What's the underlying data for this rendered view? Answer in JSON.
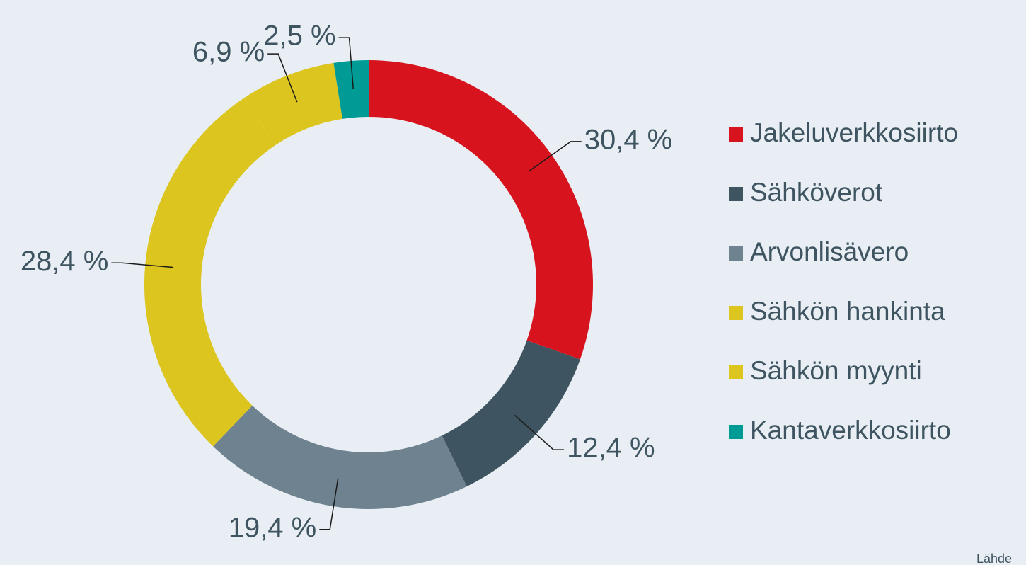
{
  "chart_data": {
    "type": "donut",
    "categories": [
      "Jakeluverkkosiirto",
      "Sähköverot",
      "Arvonlisävero",
      "Sähkön hankinta",
      "Sähkön myynti",
      "Kantaverkkosiirto"
    ],
    "values": [
      30.4,
      12.4,
      19.4,
      28.4,
      6.9,
      2.5
    ],
    "value_labels": [
      "30,4 %",
      "12,4 %",
      "19,4 %",
      "28,4 %",
      "6,9 %",
      "2,5 %"
    ],
    "colors": [
      "#d7141e",
      "#3e5561",
      "#6e8290",
      "#dcc51e",
      "#dcc51e",
      "#009b95"
    ],
    "legend": "right",
    "source": "Lähde"
  }
}
